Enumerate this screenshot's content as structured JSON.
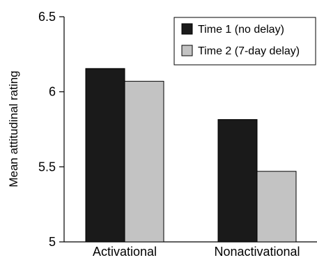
{
  "chart_data": {
    "type": "bar",
    "title": "",
    "xlabel": "",
    "ylabel": "Mean attitudinal rating",
    "categories": [
      "Activational",
      "Nonactivational"
    ],
    "series": [
      {
        "name": "Time 1 (no delay)",
        "color": "#1a1a1a",
        "values": [
          6.155,
          5.815
        ]
      },
      {
        "name": "Time 2 (7-day delay)",
        "color": "#c3c3c3",
        "values": [
          6.07,
          5.47
        ]
      }
    ],
    "ylim": [
      5,
      6.5
    ],
    "yticks": [
      5,
      5.5,
      6,
      6.5
    ],
    "ytick_labels": [
      "5",
      "5.5",
      "6",
      "6.5"
    ],
    "grid": false,
    "legend_position": "top-right"
  }
}
